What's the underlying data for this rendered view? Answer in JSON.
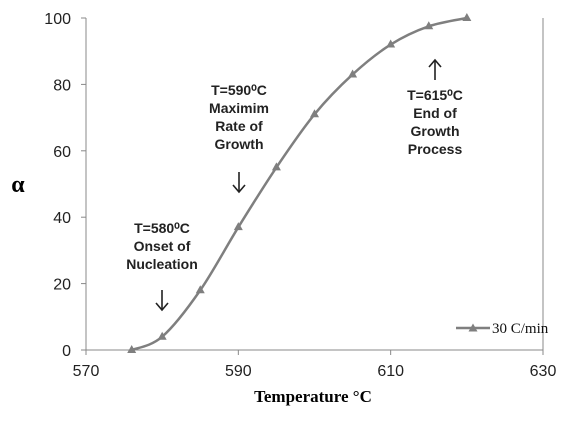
{
  "chart_data": {
    "type": "line",
    "title": "",
    "xlabel": "Temperature °C",
    "ylabel": "α",
    "xlim": [
      570,
      630
    ],
    "ylim": [
      0,
      100
    ],
    "xticks": [
      "570",
      "590",
      "610",
      "630"
    ],
    "yticks": [
      "0",
      "20",
      "40",
      "60",
      "80",
      "100"
    ],
    "grid": false,
    "legend_position": "bottom-right",
    "series": [
      {
        "name": "30 C/min",
        "color": "#7f7f7f",
        "marker": "triangle",
        "x": [
          576,
          580,
          585,
          590,
          595,
          600,
          605,
          610,
          615,
          620
        ],
        "y": [
          0,
          4,
          18,
          37,
          55,
          71,
          83,
          92,
          97.5,
          100
        ]
      }
    ],
    "annotations": [
      {
        "lines": [
          "T=580⁰C",
          "Onset of",
          "Nucleation"
        ],
        "arrow": "down"
      },
      {
        "lines": [
          "T=590⁰C",
          "Maximim",
          "Rate of",
          "Growth"
        ],
        "arrow": "down"
      },
      {
        "lines": [
          "T=615⁰C",
          "End of",
          "Growth",
          "Process"
        ],
        "arrow": "up"
      }
    ]
  }
}
